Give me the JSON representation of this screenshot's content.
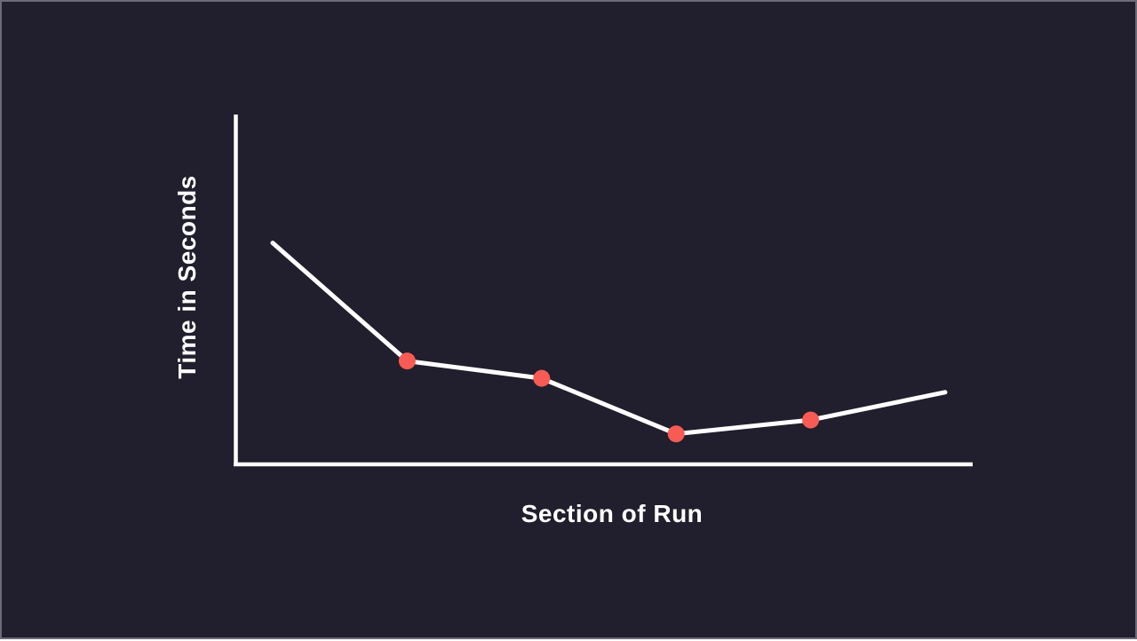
{
  "colors": {
    "background": "#211E2D",
    "border": "#6E6B78",
    "axis": "#FFFFFF",
    "line": "#FFFFFF",
    "marker": "#F75B53",
    "label_text": "#FFFFFF"
  },
  "chart_data": {
    "type": "line",
    "title": "",
    "xlabel": "Section of Run",
    "ylabel": "Time in Seconds",
    "x": [
      1,
      2,
      3,
      4,
      5,
      6
    ],
    "values": [
      63,
      29,
      24,
      8,
      12,
      20
    ],
    "ylim": [
      0,
      100
    ],
    "value_note": "relative estimates; axes have no tick labels or gridlines",
    "marker_points": [
      2,
      3,
      4,
      5
    ],
    "grid": false,
    "legend": false,
    "ticks": "none"
  }
}
